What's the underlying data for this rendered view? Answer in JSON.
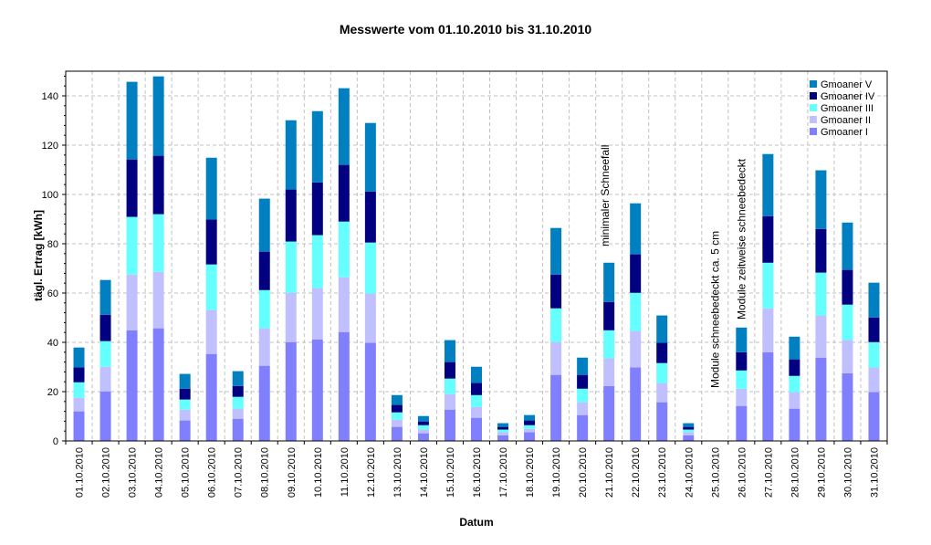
{
  "chart_data": {
    "type": "bar",
    "stacked": true,
    "title": "Messwerte vom 01.10.2010 bis 31.10.2010",
    "xlabel": "Datum",
    "ylabel": "tägl. Ertrag [kWh]",
    "ylim": [
      0,
      150
    ],
    "yticks": [
      0,
      20,
      40,
      60,
      80,
      100,
      120,
      140
    ],
    "grid": true,
    "legend_position": "top-right",
    "categories": [
      "01.10.2010",
      "02.10.2010",
      "03.10.2010",
      "04.10.2010",
      "05.10.2010",
      "06.10.2010",
      "07.10.2010",
      "08.10.2010",
      "09.10.2010",
      "10.10.2010",
      "11.10.2010",
      "12.10.2010",
      "13.10.2010",
      "14.10.2010",
      "15.10.2010",
      "16.10.2010",
      "17.10.2010",
      "18.10.2010",
      "19.10.2010",
      "20.10.2010",
      "21.10.2010",
      "22.10.2010",
      "23.10.2010",
      "24.10.2010",
      "25.10.2010",
      "26.10.2010",
      "27.10.2010",
      "28.10.2010",
      "29.10.2010",
      "30.10.2010",
      "31.10.2010"
    ],
    "series": [
      {
        "name": "Gmoaner I",
        "color": "#8080ff",
        "values": [
          12.0,
          20.1,
          44.9,
          45.7,
          8.3,
          35.3,
          9.0,
          30.5,
          40.1,
          41.2,
          44.2,
          39.8,
          5.7,
          3.1,
          12.7,
          9.4,
          2.3,
          3.5,
          26.8,
          10.5,
          22.3,
          29.8,
          15.7,
          2.3,
          0,
          14.2,
          36.0,
          13.1,
          33.8,
          27.5,
          19.8
        ]
      },
      {
        "name": "Gmoaner II",
        "color": "#c0c0ff",
        "values": [
          5.5,
          10.0,
          22.6,
          22.9,
          4.4,
          17.8,
          4.1,
          15.2,
          20.0,
          20.8,
          22.2,
          20.0,
          2.9,
          1.5,
          6.3,
          4.4,
          1.2,
          1.4,
          13.3,
          5.2,
          11.2,
          14.8,
          7.8,
          1.2,
          0,
          7.0,
          17.8,
          6.7,
          17.1,
          13.4,
          10.0
        ]
      },
      {
        "name": "Gmoaner III",
        "color": "#66ffff",
        "values": [
          6.3,
          10.4,
          23.4,
          23.4,
          4.1,
          18.5,
          4.8,
          15.5,
          20.8,
          21.5,
          22.6,
          20.7,
          3.0,
          1.8,
          6.3,
          4.8,
          1.1,
          1.5,
          13.7,
          5.5,
          11.4,
          15.5,
          8.1,
          1.1,
          0,
          7.4,
          18.5,
          6.6,
          17.4,
          14.4,
          10.3
        ]
      },
      {
        "name": "Gmoaner IV",
        "color": "#000080",
        "values": [
          6.0,
          10.7,
          23.3,
          23.7,
          4.4,
          18.2,
          4.4,
          15.6,
          21.1,
          21.4,
          23.0,
          20.7,
          3.0,
          1.5,
          6.7,
          4.9,
          1.1,
          1.9,
          13.7,
          5.6,
          11.5,
          15.6,
          8.2,
          1.1,
          0,
          7.4,
          18.9,
          6.7,
          17.7,
          14.1,
          10.0
        ]
      },
      {
        "name": "Gmoaner V",
        "color": "#0080c0",
        "values": [
          8.1,
          14.1,
          31.5,
          32.2,
          6.0,
          25.1,
          6.0,
          21.5,
          28.1,
          28.9,
          31.1,
          27.8,
          4.0,
          2.2,
          8.9,
          6.6,
          1.5,
          2.2,
          18.9,
          7.0,
          15.9,
          20.7,
          11.1,
          1.5,
          0,
          10.0,
          25.2,
          9.2,
          23.8,
          19.2,
          14.1
        ]
      }
    ],
    "annotations": [
      {
        "text": "minimaler Schneefall",
        "category": "21.10.2010"
      },
      {
        "text": "Module schneebedeckt ca. 5 cm",
        "category": "25.10.2010"
      },
      {
        "text": "Module zeitweise schneebedeckt",
        "category": "26.10.2010"
      }
    ]
  }
}
